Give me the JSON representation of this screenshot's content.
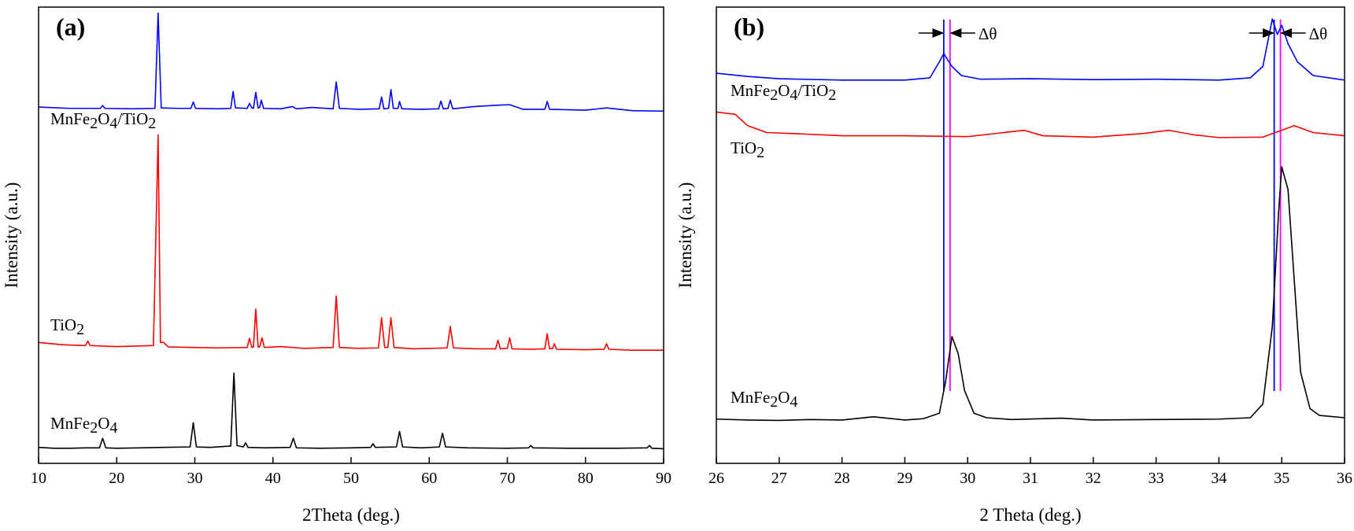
{
  "chart_data": [
    {
      "type": "line",
      "title": "(a)",
      "x_label": "2Theta (deg.)",
      "y_label": "Intensity (a.u.)",
      "xlim": [
        10,
        90
      ],
      "xticks": [
        10,
        20,
        30,
        40,
        50,
        60,
        70,
        80,
        90
      ],
      "ylim": [
        0,
        100
      ],
      "yticks": [],
      "series": [
        {
          "name": "MnFe2O4/TiO2",
          "color": "#0000ff",
          "x": [
            10,
            14,
            17.9,
            18.2,
            18.5,
            22,
            24.9,
            25.3,
            25.7,
            28,
            29.5,
            29.8,
            30.1,
            33,
            34.6,
            34.9,
            35.2,
            36.7,
            37.0,
            37.3,
            37.5,
            37.8,
            38.1,
            38.3,
            38.5,
            38.8,
            41,
            42.5,
            43,
            45,
            47.7,
            48.1,
            48.5,
            51,
            53.6,
            53.9,
            54.2,
            54.8,
            55.1,
            55.4,
            56.0,
            56.2,
            56.5,
            59,
            61.2,
            61.5,
            61.8,
            62.4,
            62.7,
            63.0,
            65.8,
            68.8,
            70.3,
            72,
            74.8,
            75.1,
            75.4,
            80,
            82.7,
            86,
            90
          ],
          "values": [
            78.1,
            77.8,
            77.8,
            78.4,
            77.8,
            77.7,
            77.8,
            98.7,
            77.9,
            77.8,
            77.8,
            79.2,
            77.8,
            77.7,
            77.8,
            81.5,
            77.9,
            77.8,
            78.9,
            77.9,
            77.8,
            81.3,
            77.9,
            78.0,
            79.6,
            77.8,
            77.7,
            78.2,
            77.7,
            78.0,
            77.7,
            83.6,
            77.8,
            77.6,
            77.7,
            80.3,
            77.7,
            77.8,
            81.9,
            77.8,
            77.8,
            79.3,
            77.7,
            77.6,
            77.7,
            79.4,
            77.7,
            77.8,
            79.6,
            77.7,
            78.2,
            78.5,
            78.6,
            77.6,
            77.6,
            79.3,
            77.6,
            77.4,
            77.9,
            77.3,
            77.2
          ]
        },
        {
          "name": "TiO2",
          "color": "#ff0000",
          "x": [
            10,
            13,
            16,
            16.3,
            16.6,
            20,
            24.7,
            25.3,
            25.6,
            26.0,
            26.6,
            30,
            33,
            36.7,
            37.0,
            37.3,
            37.5,
            37.8,
            38.1,
            38.3,
            38.6,
            38.9,
            41,
            44,
            47.7,
            48.1,
            48.5,
            51,
            53.5,
            53.9,
            54.3,
            54.7,
            55.1,
            55.5,
            58,
            62.3,
            62.7,
            63.1,
            66,
            68.5,
            68.8,
            69.1,
            70.0,
            70.3,
            70.6,
            73,
            74.8,
            75.1,
            75.4,
            75.8,
            76.0,
            76.3,
            80,
            82.4,
            82.7,
            83.0,
            86,
            90
          ],
          "values": [
            26.5,
            26.0,
            25.8,
            26.8,
            25.8,
            25.6,
            25.8,
            72,
            26.5,
            26.5,
            25.5,
            25.4,
            25.3,
            25.4,
            27.4,
            25.4,
            25.5,
            33.8,
            25.5,
            25.5,
            27.5,
            25.4,
            25.6,
            25.2,
            25.4,
            36.7,
            25.4,
            25.2,
            25.3,
            31.9,
            25.4,
            25.4,
            31.9,
            25.4,
            25.1,
            25.3,
            30.0,
            25.3,
            25.1,
            25.1,
            27.0,
            25.1,
            25.2,
            27.5,
            25.1,
            25.0,
            25.1,
            28.4,
            25.1,
            25.2,
            26.2,
            25.0,
            24.9,
            25,
            26.2,
            25.0,
            24.8,
            24.8
          ]
        },
        {
          "name": "MnFe2O4",
          "color": "#000000",
          "x": [
            10,
            12,
            14,
            16,
            17.8,
            18.2,
            18.6,
            20,
            23,
            26,
            29.4,
            29.8,
            30.2,
            32,
            34.6,
            35.0,
            35.4,
            36.2,
            36.5,
            36.8,
            39,
            42.2,
            42.6,
            43.0,
            46,
            50,
            52.5,
            52.8,
            53.1,
            55.8,
            56.2,
            56.6,
            59,
            61.3,
            61.7,
            62.1,
            65,
            70,
            72.7,
            73,
            73.3,
            78,
            84,
            87.9,
            88.2,
            88.5,
            90
          ],
          "values": [
            3.5,
            3.3,
            3.3,
            3.4,
            3.4,
            5.5,
            3.4,
            3.3,
            3.4,
            3.5,
            3.6,
            8.9,
            3.6,
            3.5,
            3.8,
            19.8,
            3.9,
            3.6,
            4.5,
            3.5,
            3.4,
            3.5,
            5.5,
            3.4,
            3.3,
            3.4,
            3.5,
            4.3,
            3.5,
            3.6,
            7.0,
            3.6,
            3.4,
            3.6,
            6.6,
            3.6,
            3.4,
            3.3,
            3.4,
            3.9,
            3.4,
            3.3,
            3.3,
            3.4,
            3.9,
            3.3,
            3.2
          ]
        }
      ]
    },
    {
      "type": "line",
      "title": "(b)",
      "x_label": "2 Theta (deg.)",
      "y_label": "Intensity (a.u.)",
      "xlim": [
        26,
        36
      ],
      "xticks": [
        26,
        27,
        28,
        29,
        30,
        31,
        32,
        33,
        34,
        35,
        36
      ],
      "ylim": [
        0,
        100
      ],
      "yticks": [],
      "series": [
        {
          "name": "MnFe2O4/TiO2",
          "color": "#0000ff",
          "x": [
            26,
            26.5,
            27,
            28,
            29,
            29.4,
            29.55,
            29.62,
            29.75,
            29.9,
            30.2,
            31,
            32,
            33,
            34,
            34.5,
            34.7,
            34.85,
            34.93,
            35.0,
            35.1,
            35.25,
            35.5,
            36
          ],
          "values": [
            85.5,
            84.8,
            84.3,
            84,
            84,
            84.5,
            88,
            89.8,
            87,
            85,
            84.2,
            84.3,
            84.1,
            84.2,
            84,
            84.5,
            87,
            97.4,
            94,
            96,
            92,
            88,
            85,
            84
          ]
        },
        {
          "name": "TiO2",
          "color": "#ff0000",
          "x": [
            26,
            26.3,
            26.5,
            26.8,
            27.2,
            28,
            29,
            30,
            30.9,
            31.2,
            32,
            32.8,
            33.2,
            33.6,
            34,
            34.7,
            35.2,
            35.5,
            36
          ],
          "values": [
            77,
            76.5,
            74,
            72.5,
            72.3,
            71.8,
            71.8,
            71.6,
            73,
            71.8,
            71.5,
            72.3,
            73,
            72,
            71.4,
            71.5,
            74,
            72.5,
            71.8
          ]
        },
        {
          "name": "MnFe2O4",
          "color": "#000000",
          "x": [
            26,
            26.5,
            27,
            27.5,
            28,
            28.5,
            29,
            29.3,
            29.55,
            29.65,
            29.75,
            29.85,
            29.95,
            30.1,
            30.3,
            30.7,
            31.5,
            32,
            33,
            34,
            34.5,
            34.7,
            34.85,
            34.95,
            35.0,
            35.1,
            35.2,
            35.3,
            35.45,
            35.6,
            36
          ],
          "values": [
            9.7,
            9.5,
            9.4,
            9.6,
            9.5,
            10.2,
            9.5,
            9.8,
            11,
            18,
            27.8,
            24,
            16,
            11,
            10,
            9.6,
            9.9,
            9.5,
            9.6,
            9.7,
            10,
            13,
            30,
            55,
            65,
            60,
            40,
            20,
            12,
            10.5,
            10
          ]
        }
      ],
      "reference_lines": [
        {
          "x": 29.62,
          "color": "#0000ff"
        },
        {
          "x": 29.72,
          "color": "#ff00ff"
        },
        {
          "x": 34.88,
          "color": "#0000ff"
        },
        {
          "x": 34.98,
          "color": "#ff00ff"
        }
      ],
      "annotations": [
        "Δθ",
        "Δθ"
      ]
    }
  ]
}
